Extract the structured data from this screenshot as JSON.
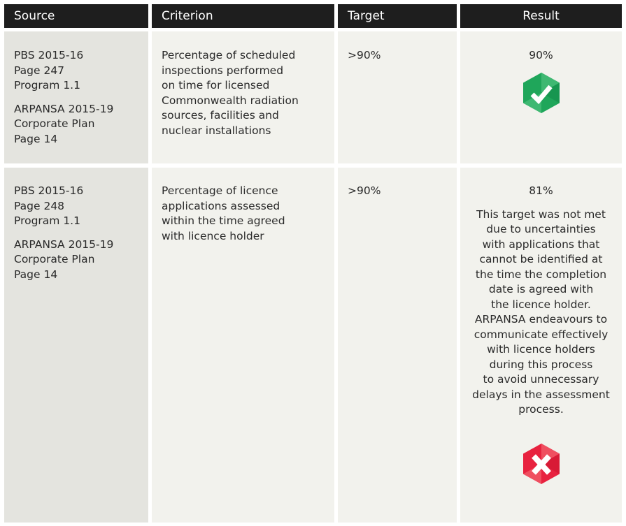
{
  "headers": [
    "Source",
    "Criterion",
    "Target",
    "Result"
  ],
  "rows": [
    {
      "source": [
        "PBS 2015-16\nPage 247\nProgram 1.1",
        "ARPANSA 2015-19\nCorporate Plan\nPage 14"
      ],
      "criterion": "Percentage of scheduled\ninspections performed\non time for licensed\nCommonwealth radiation\nsources, facilities and\nnuclear installations",
      "target": ">90%",
      "result": "90%",
      "note": "",
      "status": "met",
      "status_icon": "check-hexagon-icon",
      "status_color": "#1fa65a"
    },
    {
      "source": [
        "PBS 2015-16\nPage 248\nProgram 1.1",
        "ARPANSA 2015-19\nCorporate Plan\nPage 14"
      ],
      "criterion": "Percentage of licence\napplications assessed\nwithin the time agreed\nwith licence holder",
      "target": ">90%",
      "result": "81%",
      "note": "This target was not met\ndue to uncertainties\nwith applications that\ncannot be identified at\nthe time the completion\ndate is agreed with\nthe licence holder.\nARPANSA endeavours to\ncommunicate effectively\nwith licence holders\nduring this process\nto avoid unnecessary\ndelays in the assessment\nprocess.",
      "status": "not met",
      "status_icon": "cross-hexagon-icon",
      "status_color": "#e8223f"
    }
  ]
}
